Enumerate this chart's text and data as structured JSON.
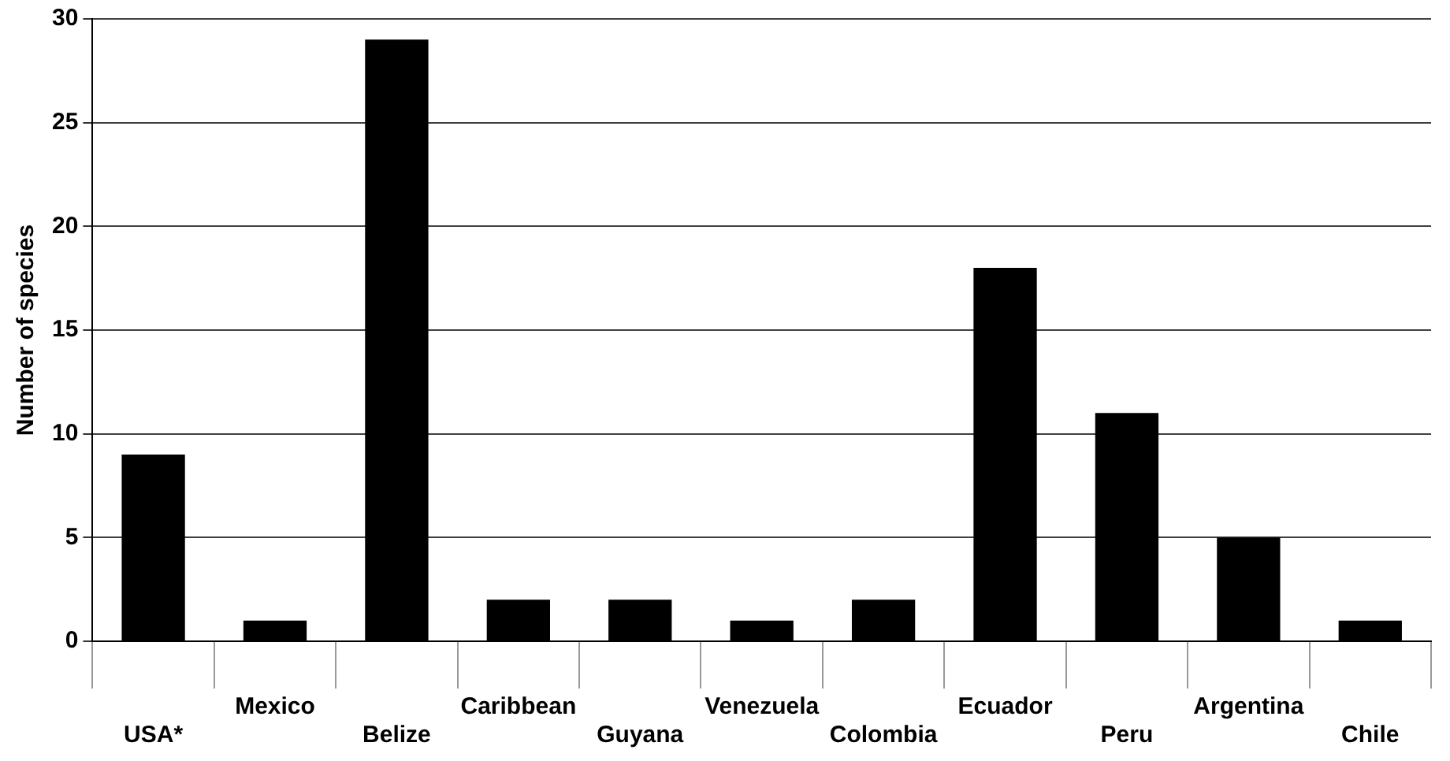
{
  "chart_data": {
    "type": "bar",
    "ylabel": "Number of species",
    "categories": [
      "USA*",
      "Mexico",
      "Belize",
      "Caribbean",
      "Guyana",
      "Venezuela",
      "Colombia",
      "Ecuador",
      "Peru",
      "Argentina",
      "Chile"
    ],
    "values": [
      9,
      1,
      29,
      2,
      2,
      1,
      2,
      18,
      11,
      5,
      1
    ],
    "color": "#000000",
    "ylim": [
      0,
      30
    ],
    "yticks": [
      0,
      5,
      10,
      15,
      20,
      25,
      30
    ],
    "grid": "y"
  }
}
